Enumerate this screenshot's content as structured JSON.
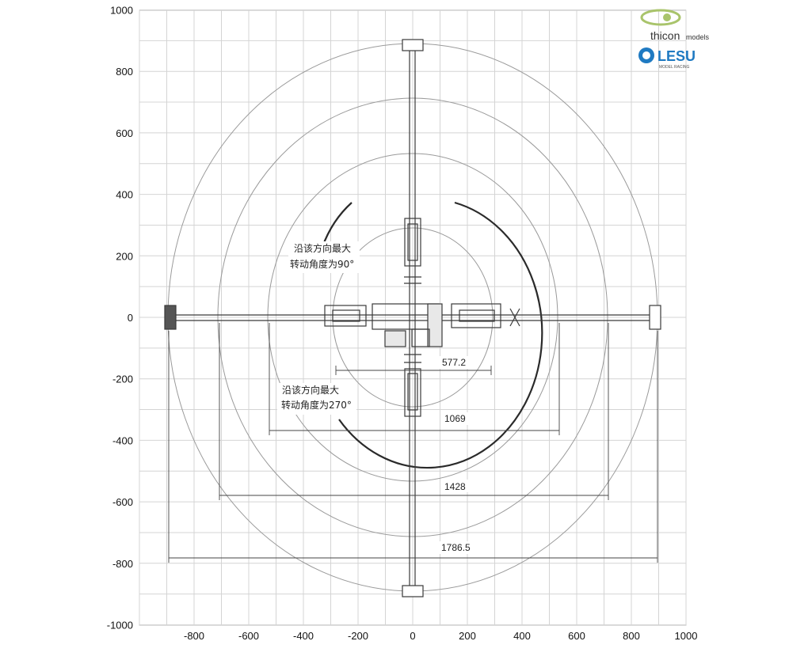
{
  "chart_data": {
    "type": "diagram",
    "xlim": [
      -1000,
      1000
    ],
    "ylim": [
      -1000,
      1000
    ],
    "x_ticks": [
      -800,
      -600,
      -400,
      -200,
      0,
      200,
      400,
      600,
      800,
      1000
    ],
    "y_ticks": [
      1000,
      800,
      600,
      400,
      200,
      0,
      -200,
      -400,
      -600,
      -800,
      -1000
    ],
    "grid": true,
    "rings": [
      {
        "diameter": 577.2,
        "label": "577.2"
      },
      {
        "diameter": 1069,
        "label": "1069"
      },
      {
        "diameter": 1428,
        "label": "1428"
      },
      {
        "diameter": 1786.5,
        "label": "1786.5"
      }
    ],
    "annotations": [
      {
        "id": "rotation-90",
        "lines": [
          "沿该方向最大",
          "转动角度为90°"
        ]
      },
      {
        "id": "rotation-270",
        "lines": [
          "沿该方向最大",
          "转动角度为270°"
        ]
      }
    ]
  },
  "logos": {
    "brand1": "thicon",
    "brand1_sub": "models",
    "brand2": "LESU",
    "brand2_sub": "MODEL RACING"
  },
  "colors": {
    "grid": "#d4d4d4",
    "ring": "#9a9a9a",
    "ink": "#2a2a2a",
    "logo_green": "#a9c46b",
    "logo_blue": "#1f7ac2"
  }
}
